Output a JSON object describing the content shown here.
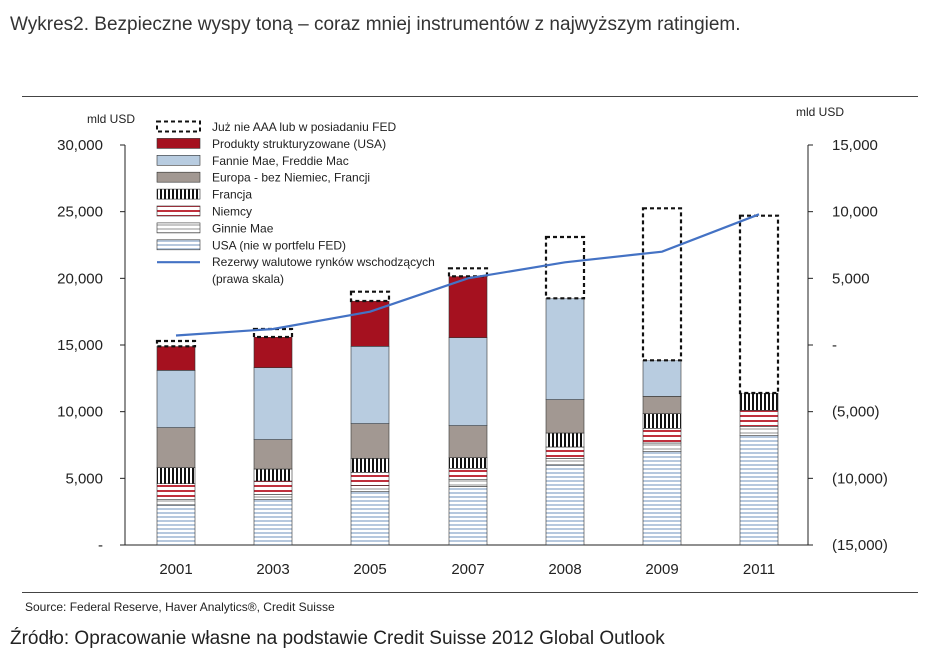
{
  "title": "Wykres2. Bezpieczne wyspy toną – coraz mniej instrumentów z najwyższym ratingiem.",
  "source": "Source: Federal Reserve, Haver Analytics®, Credit Suisse",
  "footer": "Źródło: Opracowanie własne na podstawie Credit Suisse 2012 Global Outlook",
  "chart_data": {
    "type": "bar",
    "stacked": true,
    "categories": [
      "2001",
      "2003",
      "2005",
      "2007",
      "2008",
      "2009",
      "2011"
    ],
    "left_axis": {
      "unit": "mld USD",
      "ylim": [
        0,
        30000
      ],
      "ticks": [
        {
          "value": 0,
          "label": "-"
        },
        {
          "value": 5000,
          "label": "5,000"
        },
        {
          "value": 10000,
          "label": "10,000"
        },
        {
          "value": 15000,
          "label": "15,000"
        },
        {
          "value": 20000,
          "label": "20,000"
        },
        {
          "value": 25000,
          "label": "25,000"
        },
        {
          "value": 30000,
          "label": "30,000"
        }
      ]
    },
    "right_axis": {
      "unit": "mld USD",
      "ylim": [
        -15000,
        15000
      ],
      "ticks": [
        {
          "value": -15000,
          "label": "(15,000)"
        },
        {
          "value": -10000,
          "label": "(10,000)"
        },
        {
          "value": -5000,
          "label": "(5,000)"
        },
        {
          "value": 0,
          "label": "-"
        },
        {
          "value": 5000,
          "label": "5,000"
        },
        {
          "value": 10000,
          "label": "10,000"
        },
        {
          "value": 15000,
          "label": "15,000"
        }
      ]
    },
    "series": [
      {
        "name": "USA (nie w portfelu FED)",
        "values": [
          3000,
          3400,
          4000,
          4400,
          6000,
          7000,
          8200
        ],
        "color": "#dce6f0",
        "pattern": "hstripe-blue"
      },
      {
        "name": "Ginnie Mae",
        "values": [
          400,
          400,
          450,
          500,
          500,
          650,
          700
        ],
        "color": "#eeeeee",
        "pattern": "hstripe-gray"
      },
      {
        "name": "Niemcy",
        "values": [
          1200,
          1000,
          1000,
          850,
          850,
          1100,
          1200
        ],
        "color": "#f4cccc",
        "pattern": "hstripe-red"
      },
      {
        "name": "Francja",
        "values": [
          1200,
          900,
          1050,
          800,
          1050,
          1100,
          1300
        ],
        "color": "#ffffff",
        "pattern": "vstripe-black"
      },
      {
        "name": "Europa - bez Niemiec, Francji",
        "values": [
          3000,
          2200,
          2600,
          2400,
          2500,
          1300,
          0
        ],
        "color": "#a29892"
      },
      {
        "name": "Fannie Mae, Freddie Mac",
        "values": [
          4300,
          5400,
          5800,
          6600,
          7600,
          2700,
          0
        ],
        "color": "#b8cce0"
      },
      {
        "name": "Produkty strukturyzowane (USA)",
        "values": [
          1800,
          2300,
          3400,
          4600,
          0,
          0,
          0
        ],
        "color": "#a5111f"
      },
      {
        "name": "Już nie AAA lub w posiadaniu FED",
        "values": [
          400,
          600,
          700,
          600,
          4600,
          11400,
          13300
        ],
        "color": "#ffffff",
        "pattern": "dashed-outline"
      }
    ],
    "line_series": {
      "name": "Rezerwy walutowe rynków wschodzących (prawa skala)",
      "axis": "right",
      "color": "#4472c4",
      "values": [
        715,
        1200,
        2500,
        5000,
        6200,
        7000,
        9800
      ]
    },
    "legend": {
      "placement": "top-left",
      "entries": [
        {
          "label": "Już nie AAA lub w posiadaniu FED",
          "swatch": "dashed-outline"
        },
        {
          "label": "Produkty strukturyzowane (USA)",
          "swatch": "solid",
          "color": "#a5111f"
        },
        {
          "label": "Fannie Mae, Freddie Mac",
          "swatch": "solid",
          "color": "#b8cce0"
        },
        {
          "label": "Europa - bez Niemiec, Francji",
          "swatch": "solid",
          "color": "#a29892"
        },
        {
          "label": "Francja",
          "swatch": "vstripe-black"
        },
        {
          "label": "Niemcy",
          "swatch": "hstripe-red"
        },
        {
          "label": "Ginnie Mae",
          "swatch": "hstripe-gray"
        },
        {
          "label": "USA (nie w portfelu FED)",
          "swatch": "hstripe-blue"
        },
        {
          "label": "Rezerwy walutowe rynków wschodzących",
          "swatch": "line",
          "color": "#4472c4"
        },
        {
          "label": "(prawa skala)",
          "swatch": "none"
        }
      ]
    },
    "grid": false
  }
}
